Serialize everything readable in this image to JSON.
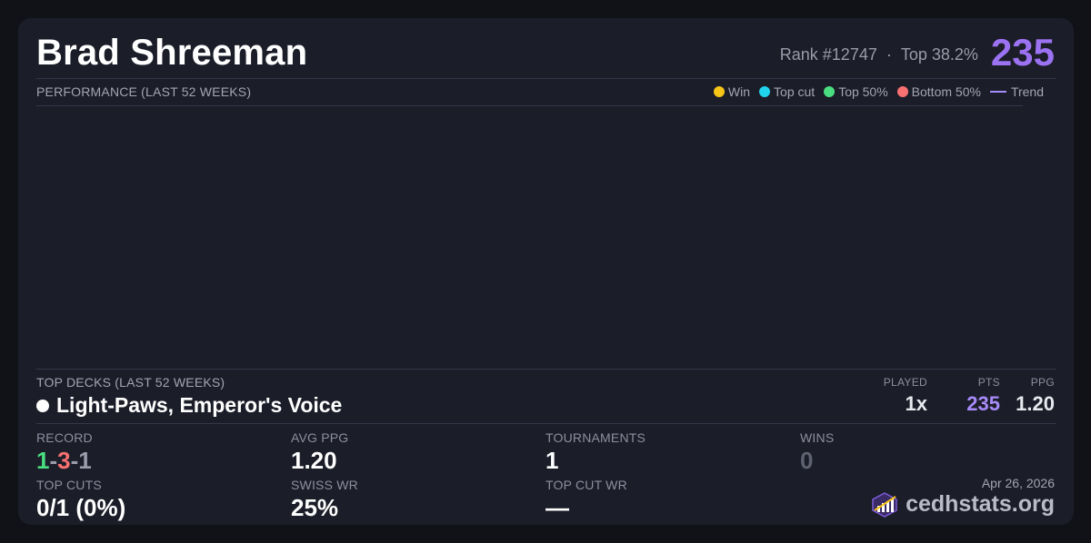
{
  "player": {
    "name": "Brad Shreeman",
    "rank": "Rank #12747",
    "separator": "·",
    "top_percent": "Top 38.2%",
    "score": "235"
  },
  "performance": {
    "label": "PERFORMANCE (LAST 52 WEEKS)",
    "legend": [
      {
        "label": "Win",
        "color": "#f5c518",
        "type": "dot"
      },
      {
        "label": "Top cut",
        "color": "#22d3ee",
        "type": "dot"
      },
      {
        "label": "Top 50%",
        "color": "#4ade80",
        "type": "dot"
      },
      {
        "label": "Bottom 50%",
        "color": "#f87171",
        "type": "dot"
      },
      {
        "label": "Trend",
        "color": "#a78bfa",
        "type": "line"
      }
    ]
  },
  "top_decks": {
    "label": "TOP DECKS (LAST 52 WEEKS)",
    "columns": {
      "played": "PLAYED",
      "pts": "PTS",
      "ppg": "PPG"
    },
    "deck": {
      "name": "Light-Paws, Emperor's Voice",
      "color_identity": "white",
      "played": "1x",
      "pts": "235",
      "ppg": "1.20"
    }
  },
  "stats": {
    "record": {
      "label": "RECORD",
      "wins": "1",
      "losses": "3",
      "draws": "1",
      "sep": "-"
    },
    "avg_ppg": {
      "label": "AVG PPG",
      "value": "1.20"
    },
    "tournaments": {
      "label": "TOURNAMENTS",
      "value": "1"
    },
    "wins": {
      "label": "WINS",
      "value": "0"
    },
    "top_cuts": {
      "label": "TOP CUTS",
      "value": "0/1 (0%)"
    },
    "swiss_wr": {
      "label": "SWISS WR",
      "value": "25%"
    },
    "top_cut_wr": {
      "label": "TOP CUT WR",
      "value": "—"
    }
  },
  "footer": {
    "date": "Apr 26, 2026",
    "brand": "cedhstats.org",
    "logo_icon": "chart-logo-icon"
  },
  "colors": {
    "accent": "#9b72f2",
    "win": "#4ade80",
    "loss": "#f87171",
    "draw": "#9a9cab"
  }
}
